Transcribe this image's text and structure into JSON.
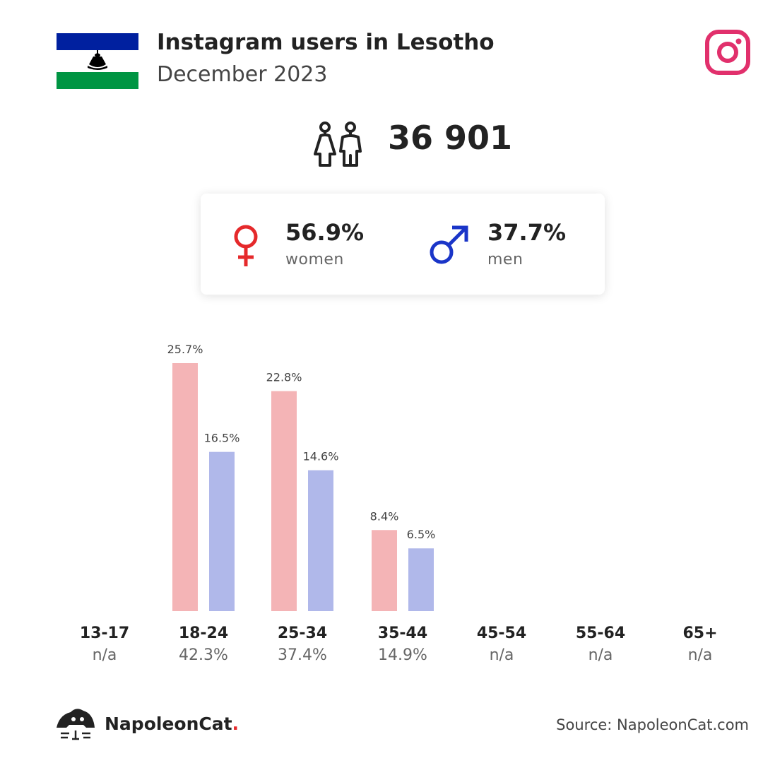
{
  "header": {
    "title": "Instagram users in Lesotho",
    "subtitle": "December 2023",
    "flag": {
      "top": "#00209F",
      "middle": "#ffffff",
      "bottom": "#009543",
      "emblem": "#000000"
    },
    "platform_icon": "instagram-icon",
    "platform_color": "#E1306C"
  },
  "summary": {
    "users_icon": "users-icon",
    "total_users": "36 901"
  },
  "gender": {
    "women": {
      "value": "56.9%",
      "label": "women",
      "icon": "female-symbol-icon",
      "color": "#E5292B"
    },
    "men": {
      "value": "37.7%",
      "label": "men",
      "icon": "male-symbol-icon",
      "color": "#1A35C8"
    }
  },
  "chart_data": {
    "type": "bar",
    "categories": [
      "13-17",
      "18-24",
      "25-34",
      "35-44",
      "45-54",
      "55-64",
      "65+"
    ],
    "category_totals": [
      "n/a",
      "42.3%",
      "37.4%",
      "14.9%",
      "n/a",
      "n/a",
      "n/a"
    ],
    "series": [
      {
        "values": [
          null,
          25.7,
          22.8,
          8.4,
          null,
          null,
          null
        ],
        "labels": [
          "",
          "25.7%",
          "22.8%",
          "8.4%",
          "",
          "",
          ""
        ],
        "color": "#F4B4B6"
      },
      {
        "values": [
          null,
          16.5,
          14.6,
          6.5,
          null,
          null,
          null
        ],
        "labels": [
          "",
          "16.5%",
          "14.6%",
          "6.5%",
          "",
          "",
          ""
        ],
        "color": "#B0B8EA"
      }
    ],
    "title": "",
    "xlabel": "",
    "ylabel": "",
    "ylim": [
      0,
      25.7
    ],
    "grid": false
  },
  "footer": {
    "brand_icon": "napoleoncat-logo-icon",
    "brand_name": "NapoleonCat",
    "brand_dot": ".",
    "source": "Source: NapoleonCat.com"
  }
}
